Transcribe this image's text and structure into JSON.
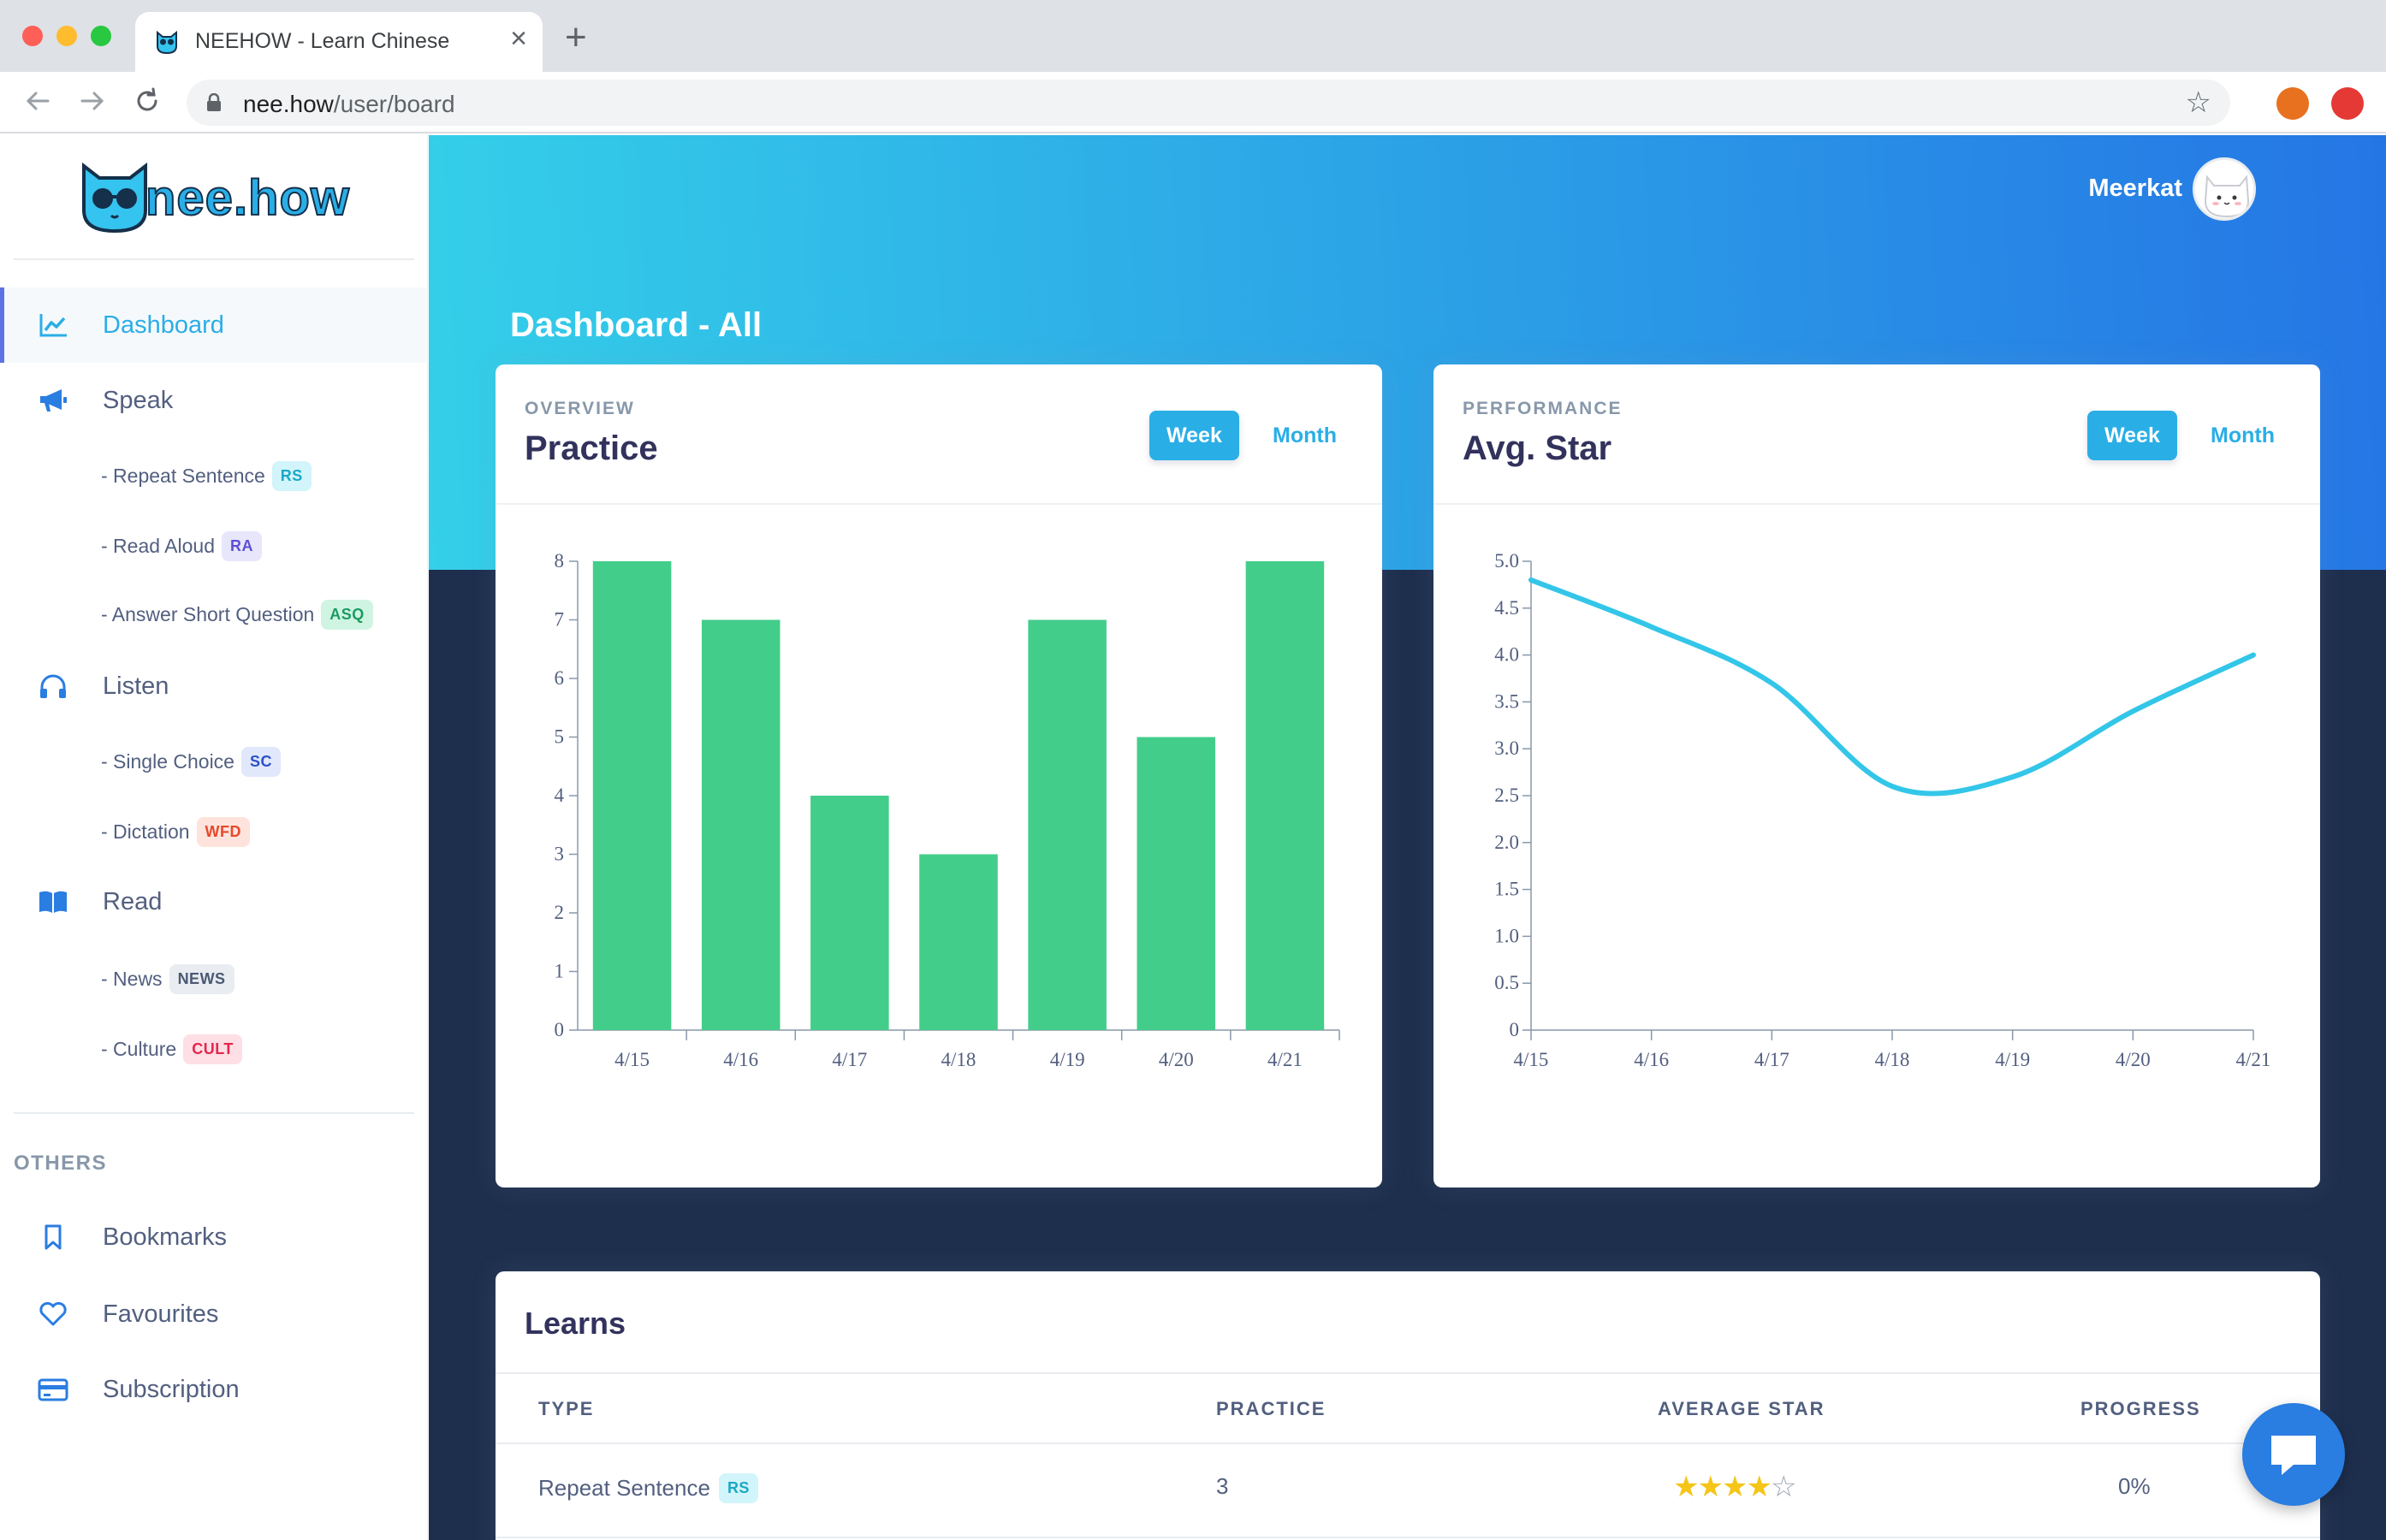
{
  "browser": {
    "tab_title": "NEEHOW - Learn Chinese",
    "url_host": "nee.how",
    "url_path": "/user/board"
  },
  "sidebar": {
    "logo_text": "nee.how",
    "items": [
      {
        "label": "Dashboard",
        "icon": "chart-line-icon"
      },
      {
        "label": "Speak",
        "icon": "megaphone-icon"
      },
      {
        "label": "Listen",
        "icon": "headphones-icon"
      },
      {
        "label": "Read",
        "icon": "book-icon"
      }
    ],
    "sub_items": [
      {
        "label": "- Repeat Sentence",
        "badge": "RS"
      },
      {
        "label": "- Read Aloud",
        "badge": "RA"
      },
      {
        "label": "- Answer Short Question",
        "badge": "ASQ"
      },
      {
        "label": "- Single Choice",
        "badge": "SC"
      },
      {
        "label": "- Dictation",
        "badge": "WFD"
      },
      {
        "label": "- News",
        "badge": "NEWS"
      },
      {
        "label": "- Culture",
        "badge": "CULT"
      }
    ],
    "others_title": "OTHERS",
    "others": [
      {
        "label": "Bookmarks",
        "icon": "bookmark-icon"
      },
      {
        "label": "Favourites",
        "icon": "heart-icon"
      },
      {
        "label": "Subscription",
        "icon": "credit-card-icon"
      }
    ]
  },
  "header": {
    "user_name": "Meerkat",
    "page_title": "Dashboard - All"
  },
  "practice_card": {
    "overline": "OVERVIEW",
    "title": "Practice",
    "week_label": "Week",
    "month_label": "Month"
  },
  "star_card": {
    "overline": "PERFORMANCE",
    "title": "Avg. Star",
    "week_label": "Week",
    "month_label": "Month"
  },
  "chart_data": [
    {
      "type": "bar",
      "categories": [
        "4/15",
        "4/16",
        "4/17",
        "4/18",
        "4/19",
        "4/20",
        "4/21"
      ],
      "values": [
        8,
        7,
        4,
        3,
        7,
        5,
        8
      ],
      "ylim": [
        0,
        8
      ],
      "yticks": [
        "0",
        "1",
        "2",
        "3",
        "4",
        "5",
        "6",
        "7",
        "8"
      ],
      "color": "#43cd8a"
    },
    {
      "type": "line",
      "categories": [
        "4/15",
        "4/16",
        "4/17",
        "4/18",
        "4/19",
        "4/20",
        "4/21"
      ],
      "values": [
        4.8,
        4.3,
        3.7,
        2.6,
        2.7,
        3.4,
        4.0
      ],
      "ylim": [
        0,
        5
      ],
      "yticks": [
        "0",
        "0.5",
        "1.0",
        "1.5",
        "2.0",
        "2.5",
        "3.0",
        "3.5",
        "4.0",
        "4.5",
        "5.0"
      ],
      "color": "#33c6e8"
    }
  ],
  "learns": {
    "title": "Learns",
    "columns": [
      "TYPE",
      "PRACTICE",
      "AVERAGE STAR",
      "PROGRESS"
    ],
    "rows": [
      {
        "type": "Repeat Sentence",
        "badge": "RS",
        "practice": "3",
        "stars": 4,
        "progress": "0%"
      }
    ]
  },
  "colors": {
    "accent": "#2aaee6",
    "bar": "#43cd8a",
    "line": "#33c6e8",
    "navy": "#1e2f4e"
  }
}
